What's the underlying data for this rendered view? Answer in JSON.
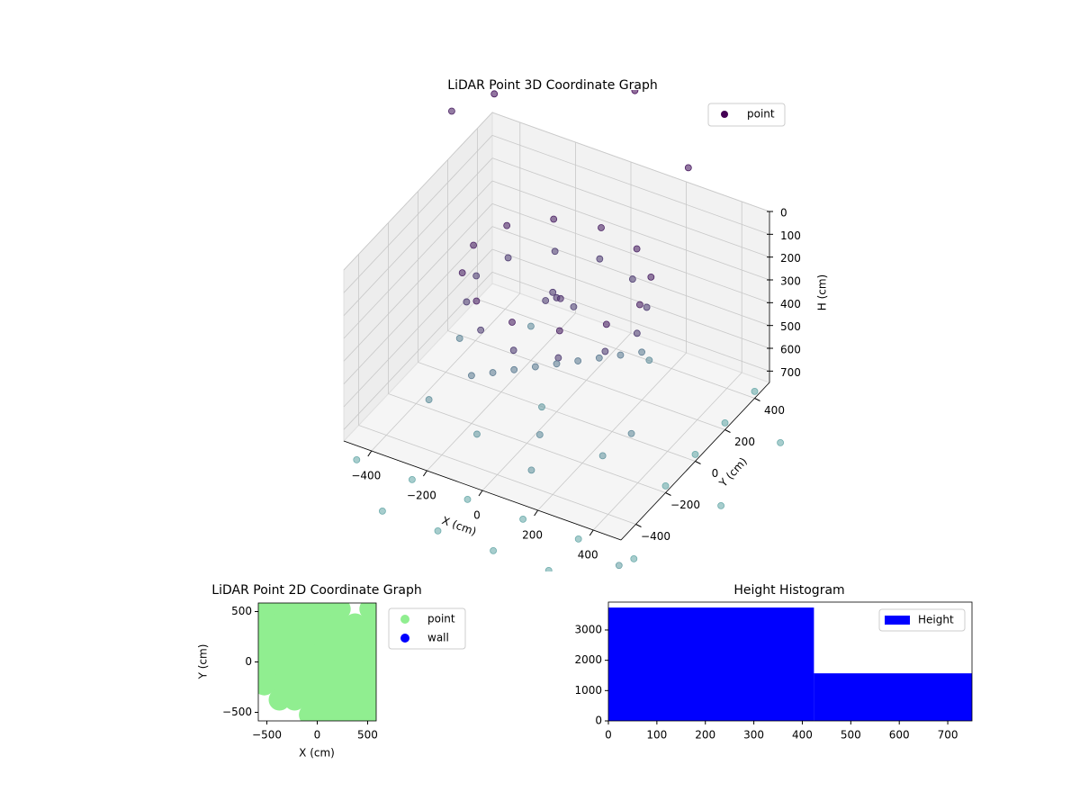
{
  "chart_data": [
    {
      "type": "scatter3d",
      "title": "LiDAR Point 3D Coordinate Graph",
      "xlabel": "X (cm)",
      "ylabel": "Y (cm)",
      "zlabel": "H (cm)",
      "xlim": [
        -500,
        500
      ],
      "ylim": [
        -500,
        500
      ],
      "zlim": [
        0,
        750
      ],
      "zinvert": true,
      "xticks": [
        {
          "value": -400,
          "label": "−400"
        },
        {
          "value": -200,
          "label": "−200"
        },
        0,
        200,
        400
      ],
      "yticks": [
        {
          "value": -400,
          "label": "−400"
        },
        {
          "value": -200,
          "label": "−200"
        },
        0,
        200,
        400
      ],
      "zticks": [
        0,
        100,
        200,
        300,
        400,
        500,
        600,
        700
      ],
      "colormap": [
        "#440154",
        "#6fb3b0"
      ],
      "legend": "upper right",
      "grid": true,
      "series": [
        {
          "name": "point",
          "color": "#440154",
          "x": [
            300,
            260,
            150,
            0,
            -150,
            -260,
            -300,
            -260,
            -150,
            0,
            150,
            260,
            290,
            250,
            140,
            0,
            -140,
            -250,
            -290,
            -250,
            -140,
            0,
            140,
            250,
            0,
            40,
            -40,
            30,
            -30,
            -200,
            -150,
            -100,
            -50,
            0,
            50,
            100,
            150,
            200,
            -400,
            -200,
            0,
            200,
            400,
            600,
            -200,
            0,
            200,
            400,
            500,
            500,
            500,
            500,
            700,
            700,
            700,
            -300,
            -100,
            100,
            300,
            -200,
            200,
            0,
            -350,
            350,
            150,
            -700,
            -600,
            -200,
            100,
            600
          ],
          "y": [
            0,
            150,
            260,
            300,
            260,
            150,
            0,
            -150,
            -260,
            -300,
            -260,
            -150,
            0,
            140,
            250,
            290,
            250,
            140,
            0,
            -140,
            -250,
            -290,
            -250,
            -140,
            0,
            40,
            0,
            -30,
            30,
            -200,
            -150,
            -100,
            -50,
            0,
            50,
            100,
            150,
            200,
            -600,
            -600,
            -600,
            -600,
            -600,
            -600,
            -800,
            -800,
            -800,
            -800,
            -200,
            0,
            200,
            400,
            -200,
            200,
            600,
            -300,
            -350,
            -300,
            -250,
            200,
            250,
            -100,
            0,
            -150,
            -450,
            600,
            700,
            900,
            700,
            -700
          ],
          "values": [
            150,
            150,
            150,
            150,
            150,
            150,
            150,
            150,
            150,
            150,
            150,
            150,
            280,
            280,
            280,
            280,
            280,
            280,
            280,
            280,
            280,
            280,
            280,
            280,
            250,
            300,
            280,
            220,
            260,
            540,
            540,
            540,
            540,
            540,
            540,
            540,
            540,
            540,
            720,
            720,
            720,
            720,
            720,
            720,
            720,
            720,
            720,
            720,
            720,
            720,
            720,
            720,
            720,
            720,
            720,
            620,
            650,
            600,
            640,
            600,
            610,
            660,
            580,
            590,
            630,
            150,
            100,
            50,
            120,
            680
          ]
        }
      ]
    },
    {
      "type": "scatter",
      "title": "LiDAR Point 2D Coordinate Graph",
      "xlabel": "X (cm)",
      "ylabel": "Y (cm)",
      "xlim": [
        -585,
        585
      ],
      "ylim": [
        -585,
        585
      ],
      "xticks": [
        {
          "value": -500,
          "label": "−500"
        },
        0,
        500
      ],
      "yticks": [
        {
          "value": -500,
          "label": "−500"
        },
        0,
        500
      ],
      "legend": "outside right",
      "series": [
        {
          "name": "point",
          "color": "#90ee90",
          "x": [
            -525,
            -375,
            -225,
            -75,
            75,
            225,
            525,
            -525,
            -375,
            -225,
            -75,
            75,
            225,
            375,
            525,
            -525,
            -375,
            -225,
            -75,
            75,
            225,
            375,
            525,
            -525,
            -375,
            -225,
            -75,
            75,
            225,
            375,
            525,
            -525,
            -375,
            -225,
            -75,
            75,
            225,
            375,
            525,
            -525,
            -375,
            -225,
            -75,
            75,
            225,
            375,
            525,
            -375,
            -225,
            -75,
            75,
            225,
            375,
            525,
            -75,
            75,
            225,
            375,
            525
          ],
          "y": [
            525,
            525,
            525,
            525,
            525,
            525,
            525,
            375,
            375,
            375,
            375,
            375,
            375,
            375,
            375,
            225,
            225,
            225,
            225,
            225,
            225,
            225,
            225,
            75,
            75,
            75,
            75,
            75,
            75,
            75,
            75,
            -75,
            -75,
            -75,
            -75,
            -75,
            -75,
            -75,
            -75,
            -225,
            -225,
            -225,
            -225,
            -225,
            -225,
            -225,
            -225,
            -375,
            -375,
            -375,
            -375,
            -375,
            -375,
            -375,
            -525,
            -525,
            -525,
            -525,
            -525
          ]
        },
        {
          "name": "wall",
          "color": "#0000ff",
          "x": [],
          "y": []
        }
      ]
    },
    {
      "type": "histogram",
      "title": "Height Histogram",
      "xlim": [
        0,
        750
      ],
      "ylim": [
        0,
        3920
      ],
      "xticks": [
        0,
        100,
        200,
        300,
        400,
        500,
        600,
        700
      ],
      "yticks": [
        0,
        1000,
        2000,
        3000
      ],
      "bins": [
        0,
        424,
        750
      ],
      "series": [
        {
          "name": "Height",
          "color": "#0000ff",
          "values": [
            3740,
            1570
          ]
        }
      ],
      "legend": "upper right"
    }
  ]
}
